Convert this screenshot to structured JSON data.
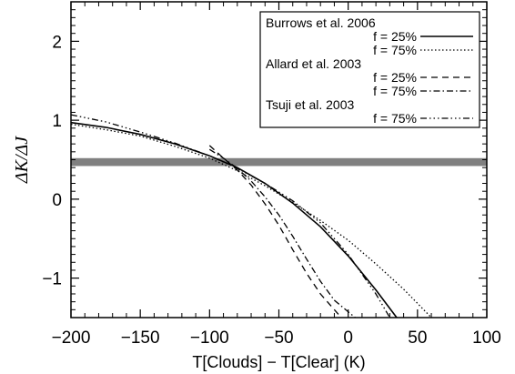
{
  "chart_data": {
    "type": "line",
    "xlabel": "T[Clouds] − T[Clear] (K)",
    "ylabel": "ΔK/ΔJ",
    "xlim": [
      -200,
      100
    ],
    "ylim": [
      -1.5,
      2.5
    ],
    "xticks": [
      -200,
      -150,
      -100,
      -50,
      0,
      50,
      100
    ],
    "yticks": [
      -1,
      0,
      1,
      2
    ],
    "grid": false,
    "legend_position": "top-right",
    "band": {
      "y_min": 0.42,
      "y_max": 0.52,
      "color": "#808080"
    },
    "legend": [
      {
        "group": "Burrows et al. 2006",
        "entries": [
          {
            "label": "f = 25%",
            "series": 0
          },
          {
            "label": "f = 75%",
            "series": 1
          }
        ]
      },
      {
        "group": "Allard et al. 2003",
        "entries": [
          {
            "label": "f = 25%",
            "series": 2
          },
          {
            "label": "f = 75%",
            "series": 3
          }
        ]
      },
      {
        "group": "Tsuji et al. 2003",
        "entries": [
          {
            "label": "f = 75%",
            "series": 4
          }
        ]
      }
    ],
    "series": [
      {
        "style": "solid",
        "x": [
          -200,
          -175,
          -150,
          -125,
          -100,
          -80,
          -60,
          -40,
          -20,
          0,
          20,
          35
        ],
        "y": [
          0.97,
          0.91,
          0.82,
          0.7,
          0.55,
          0.4,
          0.2,
          -0.05,
          -0.35,
          -0.72,
          -1.15,
          -1.5
        ]
      },
      {
        "style": "dotted",
        "x": [
          -200,
          -175,
          -150,
          -125,
          -100,
          -80,
          -60,
          -40,
          -20,
          0,
          20,
          40,
          60
        ],
        "y": [
          0.95,
          0.88,
          0.8,
          0.67,
          0.52,
          0.36,
          0.17,
          -0.04,
          -0.27,
          -0.52,
          -0.82,
          -1.14,
          -1.5
        ]
      },
      {
        "style": "dashed",
        "x": [
          -100,
          -90,
          -80,
          -70,
          -60,
          -50,
          -40,
          -30,
          -20,
          -5
        ],
        "y": [
          0.68,
          0.52,
          0.37,
          0.18,
          -0.06,
          -0.33,
          -0.64,
          -0.94,
          -1.2,
          -1.5
        ]
      },
      {
        "style": "dashdot",
        "x": [
          -100,
          -90,
          -80,
          -70,
          -60,
          -50,
          -40,
          -30,
          -20,
          -10,
          5
        ],
        "y": [
          0.63,
          0.52,
          0.39,
          0.23,
          0.03,
          -0.2,
          -0.47,
          -0.76,
          -1.04,
          -1.28,
          -1.5
        ]
      },
      {
        "style": "dashdotdotdot",
        "x": [
          -200,
          -175,
          -150,
          -125,
          -100,
          -80,
          -60,
          -40,
          -20,
          0,
          20,
          30
        ],
        "y": [
          1.07,
          0.98,
          0.85,
          0.71,
          0.55,
          0.39,
          0.2,
          -0.02,
          -0.3,
          -0.7,
          -1.2,
          -1.5
        ]
      }
    ]
  }
}
